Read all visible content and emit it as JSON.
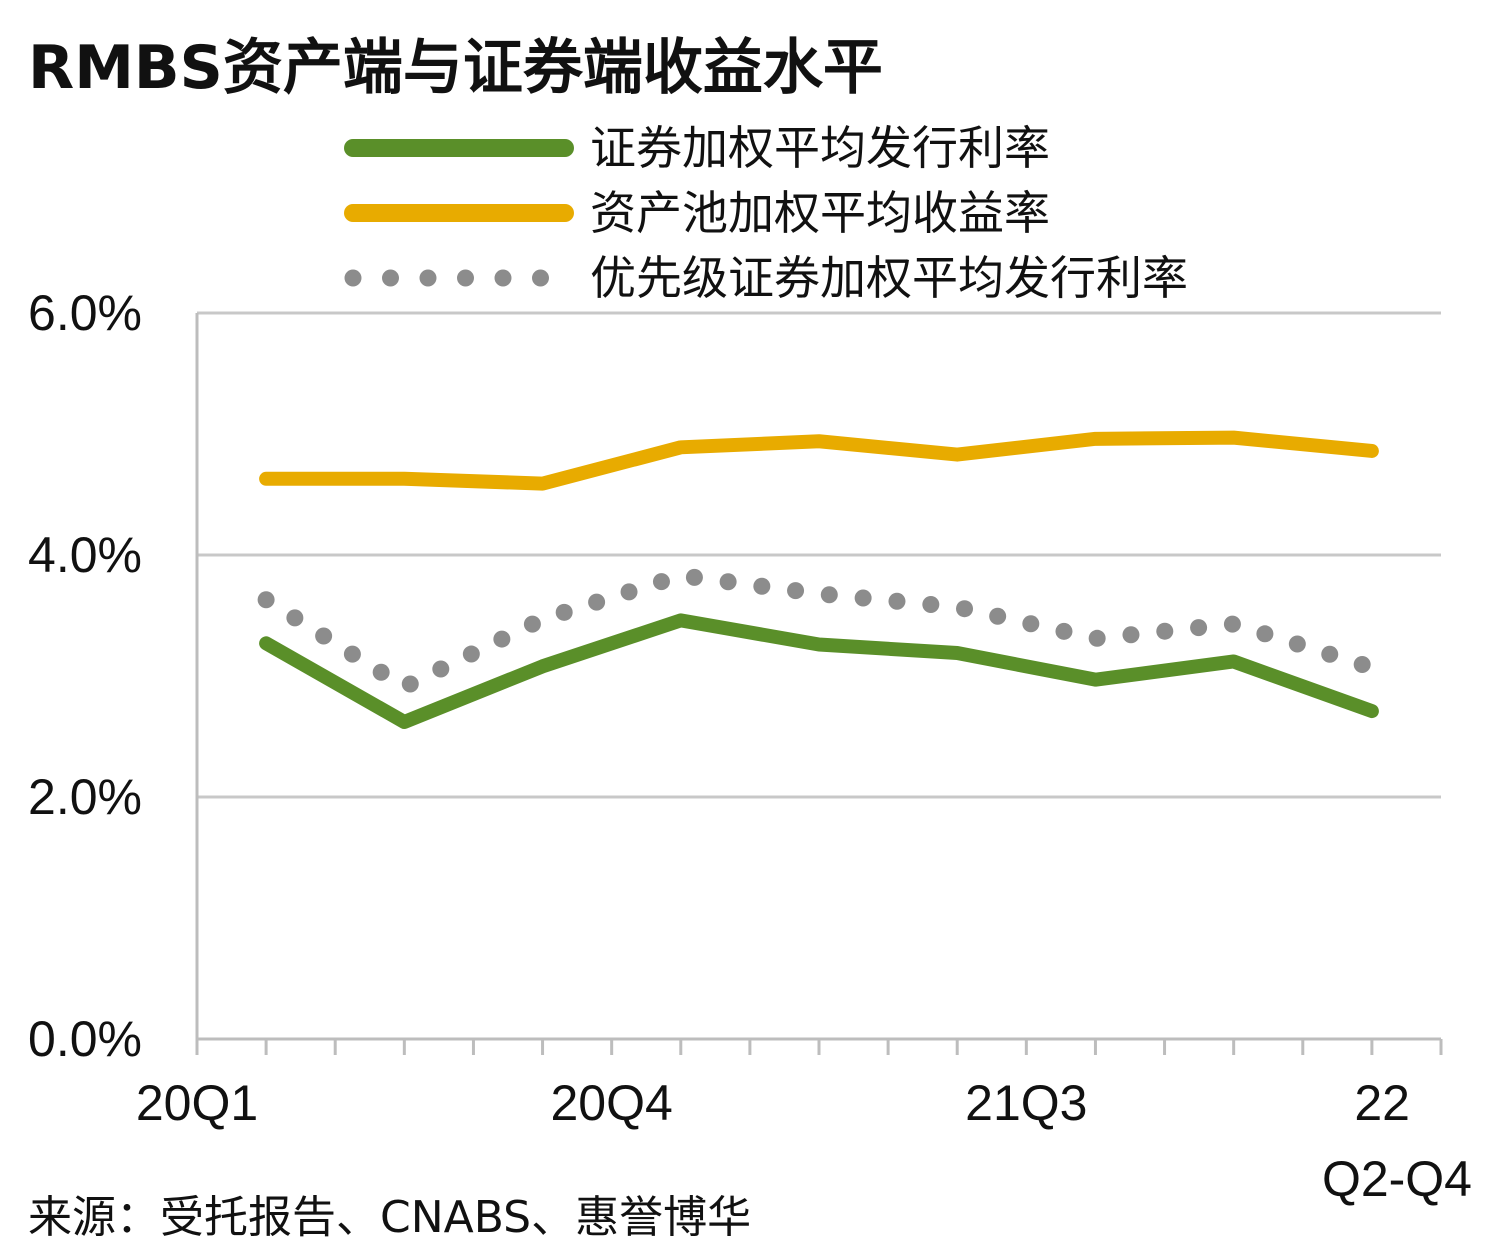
{
  "chart_data": {
    "type": "line",
    "title": "RMBS资产端与证券端收益水平",
    "ylim": [
      0,
      6
    ],
    "yticks": [
      {
        "value": 0,
        "label": "0.0%"
      },
      {
        "value": 2,
        "label": "2.0%"
      },
      {
        "value": 4,
        "label": "4.0%"
      },
      {
        "value": 6,
        "label": "6.0%"
      }
    ],
    "x_positions": 9,
    "xticks": [
      {
        "index": 0,
        "label": "20Q1"
      },
      {
        "index": 3,
        "label": "20Q4"
      },
      {
        "index": 6,
        "label": "21Q3"
      },
      {
        "index": 9,
        "label": "22\nQ2-Q4"
      }
    ],
    "grid": true,
    "legend_position": "top",
    "series": [
      {
        "name": "证券加权平均发行利率",
        "color": "#5a8f29",
        "style": "solid",
        "x": [
          0.5,
          1.5,
          2.5,
          3.5,
          4.5,
          5.5,
          6.5,
          7.5,
          8.5
        ],
        "values": [
          3.27,
          2.62,
          3.08,
          3.46,
          3.26,
          3.19,
          2.97,
          3.12,
          2.71
        ]
      },
      {
        "name": "资产池加权平均收益率",
        "color": "#e8ab00",
        "style": "solid",
        "x": [
          0.5,
          1.5,
          2.5,
          3.5,
          4.5,
          5.5,
          6.5,
          7.5,
          8.5
        ],
        "values": [
          4.63,
          4.63,
          4.59,
          4.89,
          4.94,
          4.83,
          4.96,
          4.97,
          4.86
        ]
      },
      {
        "name": "优先级证券加权平均发行利率",
        "color": "#8c8c8c",
        "style": "dotted",
        "x": [
          0.5,
          1.5,
          2.5,
          3.5,
          4.5,
          5.5,
          6.5,
          7.5,
          8.5
        ],
        "values": [
          3.63,
          2.91,
          3.47,
          3.83,
          3.68,
          3.57,
          3.31,
          3.43,
          3.07
        ]
      }
    ],
    "source": "来源：受托报告、CNABS、惠誉博华"
  }
}
